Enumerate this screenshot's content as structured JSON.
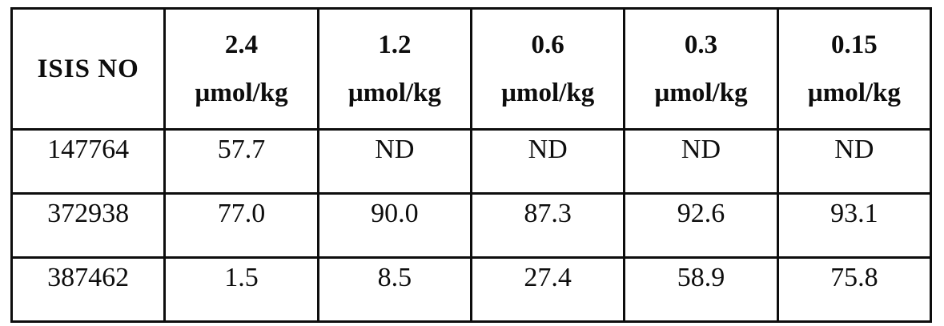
{
  "table": {
    "header": {
      "first_column_label": "ISIS NO",
      "dose_columns": [
        {
          "dose": "2.4",
          "unit": "µmol/kg"
        },
        {
          "dose": "1.2",
          "unit": "µmol/kg"
        },
        {
          "dose": "0.6",
          "unit": "µmol/kg"
        },
        {
          "dose": "0.3",
          "unit": "µmol/kg"
        },
        {
          "dose": "0.15",
          "unit": "µmol/kg"
        }
      ]
    },
    "rows": [
      {
        "isis_no": "147764",
        "values": [
          "57.7",
          "ND",
          "ND",
          "ND",
          "ND"
        ]
      },
      {
        "isis_no": "372938",
        "values": [
          "77.0",
          "90.0",
          "87.3",
          "92.6",
          "93.1"
        ]
      },
      {
        "isis_no": "387462",
        "values": [
          "1.5",
          "8.5",
          "27.4",
          "58.9",
          "75.8"
        ]
      }
    ]
  }
}
